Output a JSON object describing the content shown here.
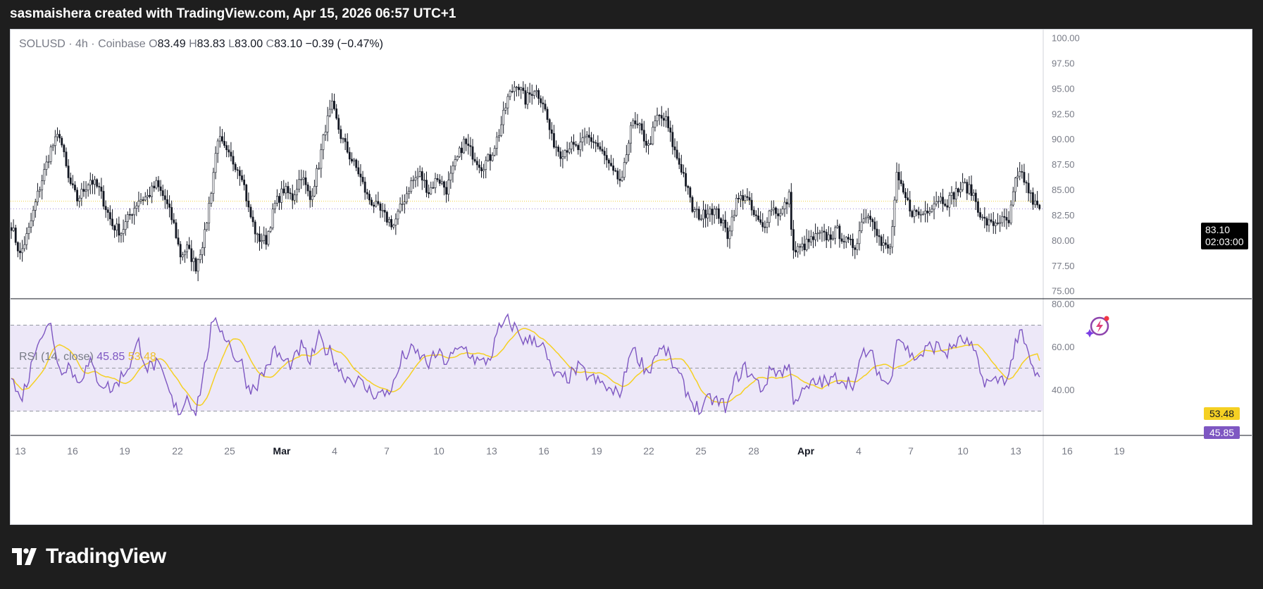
{
  "header": {
    "text": "sasmaishera created with TradingView.com, Apr 15, 2026 06:57 UTC+1"
  },
  "legend": {
    "symbol": "SOLUSD",
    "interval": "4h",
    "exchange": "Coinbase",
    "open_label": "O",
    "open": "83.49",
    "high_label": "H",
    "high": "83.83",
    "low_label": "L",
    "low": "83.00",
    "close_label": "C",
    "close": "83.10",
    "change": "−0.39 (−0.47%)"
  },
  "rsi_legend": {
    "label": "RSI (14, close)",
    "rsi_value": "45.85",
    "ma_value": "53.48"
  },
  "price_tag": {
    "price": "83.10",
    "countdown": "02:03:00"
  },
  "rsi_tags": {
    "ma": "53.48",
    "rsi": "45.85"
  },
  "brand": {
    "name": "TradingView"
  },
  "colors": {
    "candle": "#131722",
    "rsi_line": "#7e57c2",
    "rsi_ma": "#f5d023",
    "rsi_band": "#ede8f8",
    "last_price_line": "#f0d34b",
    "background": "#1e1e1e"
  },
  "icons": {
    "flash": "lightning-flash-icon",
    "logo": "tradingview-logo-icon"
  },
  "chart_data": [
    {
      "type": "candlestick",
      "title": "SOLUSD · 4h · Coinbase",
      "y_ticks": [
        "100.00",
        "97.50",
        "95.00",
        "92.50",
        "90.00",
        "87.50",
        "85.00",
        "82.50",
        "80.00",
        "77.50",
        "75.00"
      ],
      "ylim": [
        74.3,
        100.5
      ],
      "x_ticks": [
        "13",
        "16",
        "19",
        "22",
        "25",
        "Mar",
        "4",
        "7",
        "10",
        "13",
        "16",
        "19",
        "22",
        "25",
        "28",
        "Apr",
        "4",
        "7",
        "10",
        "13",
        "16",
        "19"
      ],
      "last_price": 83.1,
      "anchors": [
        [
          0,
          81.5
        ],
        [
          4,
          78.5
        ],
        [
          8,
          81
        ],
        [
          12,
          84.5
        ],
        [
          18,
          89
        ],
        [
          22,
          90.5
        ],
        [
          26,
          86
        ],
        [
          30,
          84
        ],
        [
          36,
          86
        ],
        [
          40,
          85
        ],
        [
          46,
          81.5
        ],
        [
          50,
          80.8
        ],
        [
          54,
          82.5
        ],
        [
          58,
          84
        ],
        [
          62,
          84.3
        ],
        [
          66,
          85.5
        ],
        [
          70,
          84
        ],
        [
          74,
          81.5
        ],
        [
          77,
          78.5
        ],
        [
          80,
          79.2
        ],
        [
          84,
          77.4
        ],
        [
          88,
          80.5
        ],
        [
          91,
          85
        ],
        [
          94,
          90.2
        ],
        [
          98,
          88.5
        ],
        [
          102,
          87.5
        ],
        [
          105,
          86.5
        ],
        [
          108,
          83
        ],
        [
          112,
          80.2
        ],
        [
          116,
          80
        ],
        [
          120,
          83.5
        ],
        [
          124,
          85
        ],
        [
          128,
          84.2
        ],
        [
          132,
          86.5
        ],
        [
          136,
          84
        ],
        [
          140,
          87.5
        ],
        [
          143,
          91.2
        ],
        [
          146,
          93.2
        ],
        [
          150,
          90.3
        ],
        [
          154,
          88.3
        ],
        [
          158,
          86.7
        ],
        [
          162,
          84.3
        ],
        [
          166,
          83.3
        ],
        [
          170,
          82.3
        ],
        [
          174,
          81.5
        ],
        [
          178,
          83.6
        ],
        [
          182,
          85.7
        ],
        [
          186,
          86.5
        ],
        [
          190,
          84.8
        ],
        [
          194,
          86.2
        ],
        [
          198,
          85
        ],
        [
          202,
          87.5
        ],
        [
          206,
          89.7
        ],
        [
          210,
          88.5
        ],
        [
          214,
          87.3
        ],
        [
          218,
          88.2
        ],
        [
          222,
          90.6
        ],
        [
          226,
          94
        ],
        [
          230,
          95.6
        ],
        [
          234,
          93.8
        ],
        [
          238,
          95
        ],
        [
          242,
          93.7
        ],
        [
          246,
          90
        ],
        [
          250,
          88.6
        ],
        [
          254,
          89.3
        ],
        [
          258,
          89
        ],
        [
          262,
          90.2
        ],
        [
          266,
          89.6
        ],
        [
          270,
          88.2
        ],
        [
          274,
          86.5
        ],
        [
          278,
          85.7
        ],
        [
          282,
          91.5
        ],
        [
          286,
          91
        ],
        [
          290,
          89.2
        ],
        [
          294,
          92.2
        ],
        [
          298,
          91.8
        ],
        [
          302,
          88.7
        ],
        [
          306,
          86.5
        ],
        [
          310,
          83
        ],
        [
          314,
          82.3
        ],
        [
          318,
          83.2
        ],
        [
          322,
          82.5
        ],
        [
          326,
          80.5
        ],
        [
          330,
          83.8
        ],
        [
          334,
          84.5
        ],
        [
          338,
          82.4
        ],
        [
          342,
          81.2
        ],
        [
          346,
          83.3
        ],
        [
          350,
          82.5
        ],
        [
          354,
          84.3
        ],
        [
          356,
          78.8
        ],
        [
          360,
          79.3
        ],
        [
          364,
          80
        ],
        [
          368,
          80.5
        ],
        [
          372,
          80.3
        ],
        [
          376,
          80.9
        ],
        [
          380,
          79.8
        ],
        [
          384,
          79.4
        ],
        [
          388,
          82.5
        ],
        [
          392,
          82.3
        ],
        [
          396,
          79.5
        ],
        [
          400,
          79.1
        ],
        [
          403,
          86.2
        ],
        [
          406,
          84.5
        ],
        [
          410,
          82.8
        ],
        [
          414,
          82.5
        ],
        [
          418,
          83.3
        ],
        [
          422,
          84.2
        ],
        [
          426,
          83.8
        ],
        [
          430,
          84.8
        ],
        [
          434,
          85.4
        ],
        [
          438,
          84.5
        ],
        [
          442,
          82
        ],
        [
          446,
          81.5
        ],
        [
          450,
          82
        ],
        [
          454,
          81.7
        ],
        [
          457,
          85.8
        ],
        [
          460,
          86.5
        ],
        [
          464,
          84.3
        ],
        [
          466,
          83.5
        ],
        [
          468,
          83.1
        ]
      ],
      "series": [
        {
          "name": "RSI (14, close)",
          "value": 45.85
        },
        {
          "name": "",
          "value": 53.48
        }
      ]
    },
    {
      "type": "line",
      "title": "RSI (14, close)",
      "y_ticks": [
        "80.00",
        "60.00",
        "40.00"
      ],
      "ylim": [
        20,
        81
      ],
      "bands": [
        30,
        50,
        70
      ],
      "rsi_anchors": [
        [
          0,
          46
        ],
        [
          4,
          35
        ],
        [
          8,
          46
        ],
        [
          12,
          64
        ],
        [
          18,
          70
        ],
        [
          22,
          49
        ],
        [
          26,
          52
        ],
        [
          30,
          44
        ],
        [
          36,
          52
        ],
        [
          40,
          44
        ],
        [
          46,
          40
        ],
        [
          50,
          46
        ],
        [
          54,
          52
        ],
        [
          58,
          62
        ],
        [
          62,
          50
        ],
        [
          66,
          52
        ],
        [
          70,
          44
        ],
        [
          74,
          32
        ],
        [
          77,
          30
        ],
        [
          80,
          37
        ],
        [
          84,
          30
        ],
        [
          88,
          50
        ],
        [
          91,
          68
        ],
        [
          94,
          71
        ],
        [
          98,
          64
        ],
        [
          102,
          55
        ],
        [
          105,
          52
        ],
        [
          108,
          40
        ],
        [
          112,
          43
        ],
        [
          116,
          50
        ],
        [
          120,
          58
        ],
        [
          124,
          53
        ],
        [
          128,
          52
        ],
        [
          132,
          60
        ],
        [
          136,
          53
        ],
        [
          140,
          64
        ],
        [
          143,
          59
        ],
        [
          146,
          57
        ],
        [
          150,
          48
        ],
        [
          154,
          45
        ],
        [
          158,
          44
        ],
        [
          162,
          40
        ],
        [
          166,
          38
        ],
        [
          170,
          38
        ],
        [
          174,
          42
        ],
        [
          178,
          55
        ],
        [
          182,
          58
        ],
        [
          186,
          56
        ],
        [
          190,
          52
        ],
        [
          194,
          57
        ],
        [
          198,
          53
        ],
        [
          202,
          57
        ],
        [
          206,
          60
        ],
        [
          210,
          55
        ],
        [
          214,
          52
        ],
        [
          218,
          55
        ],
        [
          222,
          68
        ],
        [
          226,
          72
        ],
        [
          230,
          68
        ],
        [
          234,
          62
        ],
        [
          238,
          64
        ],
        [
          242,
          60
        ],
        [
          246,
          48
        ],
        [
          250,
          45
        ],
        [
          254,
          46
        ],
        [
          258,
          50
        ],
        [
          262,
          47
        ],
        [
          266,
          44
        ],
        [
          270,
          42
        ],
        [
          274,
          38
        ],
        [
          278,
          40
        ],
        [
          282,
          60
        ],
        [
          286,
          54
        ],
        [
          290,
          48
        ],
        [
          294,
          58
        ],
        [
          298,
          58
        ],
        [
          302,
          50
        ],
        [
          306,
          42
        ],
        [
          310,
          34
        ],
        [
          314,
          30
        ],
        [
          318,
          36
        ],
        [
          322,
          34
        ],
        [
          326,
          32
        ],
        [
          330,
          46
        ],
        [
          334,
          50
        ],
        [
          338,
          45
        ],
        [
          342,
          40
        ],
        [
          346,
          50
        ],
        [
          350,
          48
        ],
        [
          354,
          51
        ],
        [
          356,
          36
        ],
        [
          360,
          38
        ],
        [
          364,
          42
        ],
        [
          368,
          44
        ],
        [
          372,
          43
        ],
        [
          376,
          46
        ],
        [
          380,
          44
        ],
        [
          384,
          43
        ],
        [
          388,
          58
        ],
        [
          392,
          55
        ],
        [
          396,
          45
        ],
        [
          400,
          42
        ],
        [
          403,
          66
        ],
        [
          406,
          62
        ],
        [
          410,
          55
        ],
        [
          414,
          56
        ],
        [
          418,
          60
        ],
        [
          422,
          60
        ],
        [
          426,
          57
        ],
        [
          430,
          62
        ],
        [
          434,
          63
        ],
        [
          438,
          58
        ],
        [
          442,
          45
        ],
        [
          446,
          43
        ],
        [
          450,
          45
        ],
        [
          454,
          46
        ],
        [
          457,
          63
        ],
        [
          460,
          65
        ],
        [
          464,
          52
        ],
        [
          466,
          47
        ],
        [
          468,
          45.85
        ]
      ]
    }
  ]
}
